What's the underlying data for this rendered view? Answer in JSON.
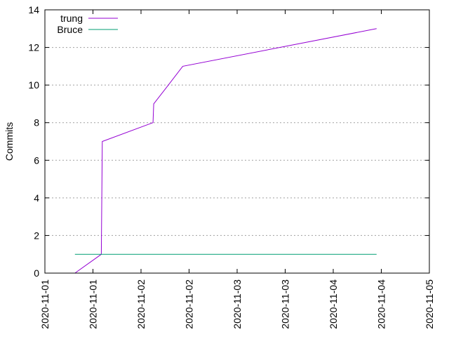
{
  "chart_data": {
    "type": "line",
    "title": "",
    "xlabel": "",
    "ylabel": "Commits",
    "ylim": [
      0,
      14
    ],
    "y_ticks": [
      0,
      2,
      4,
      6,
      8,
      10,
      12,
      14
    ],
    "xlim": [
      "2020-11-01 00:00",
      "2020-11-05 00:00"
    ],
    "x_ticks": [
      "2020-11-01 00:00",
      "2020-11-01 12:00",
      "2020-11-02 00:00",
      "2020-11-02 12:00",
      "2020-11-03 00:00",
      "2020-11-03 12:00",
      "2020-11-04 00:00",
      "2020-11-04 12:00",
      "2020-11-05 00:00"
    ],
    "x_tick_labels": [
      "2020-11-01",
      "2020-11-01",
      "2020-11-02",
      "2020-11-02",
      "2020-11-03",
      "2020-11-03",
      "2020-11-04",
      "2020-11-04",
      "2020-11-05"
    ],
    "grid": {
      "y": true,
      "x": false,
      "style": "dotted"
    },
    "legend_position": "top-left",
    "series": [
      {
        "name": "trung",
        "color": "#9400d3",
        "points": [
          {
            "x": "2020-11-01 07:30",
            "y": 0
          },
          {
            "x": "2020-11-01 14:05",
            "y": 1
          },
          {
            "x": "2020-11-01 14:20",
            "y": 7
          },
          {
            "x": "2020-11-02 03:00",
            "y": 8
          },
          {
            "x": "2020-11-02 03:10",
            "y": 9
          },
          {
            "x": "2020-11-02 06:50",
            "y": 10
          },
          {
            "x": "2020-11-02 10:25",
            "y": 11
          },
          {
            "x": "2020-11-04 10:50",
            "y": 13
          }
        ]
      },
      {
        "name": "Bruce",
        "color": "#009e73",
        "points": [
          {
            "x": "2020-11-01 07:30",
            "y": 1
          },
          {
            "x": "2020-11-04 10:50",
            "y": 1
          }
        ]
      }
    ]
  }
}
